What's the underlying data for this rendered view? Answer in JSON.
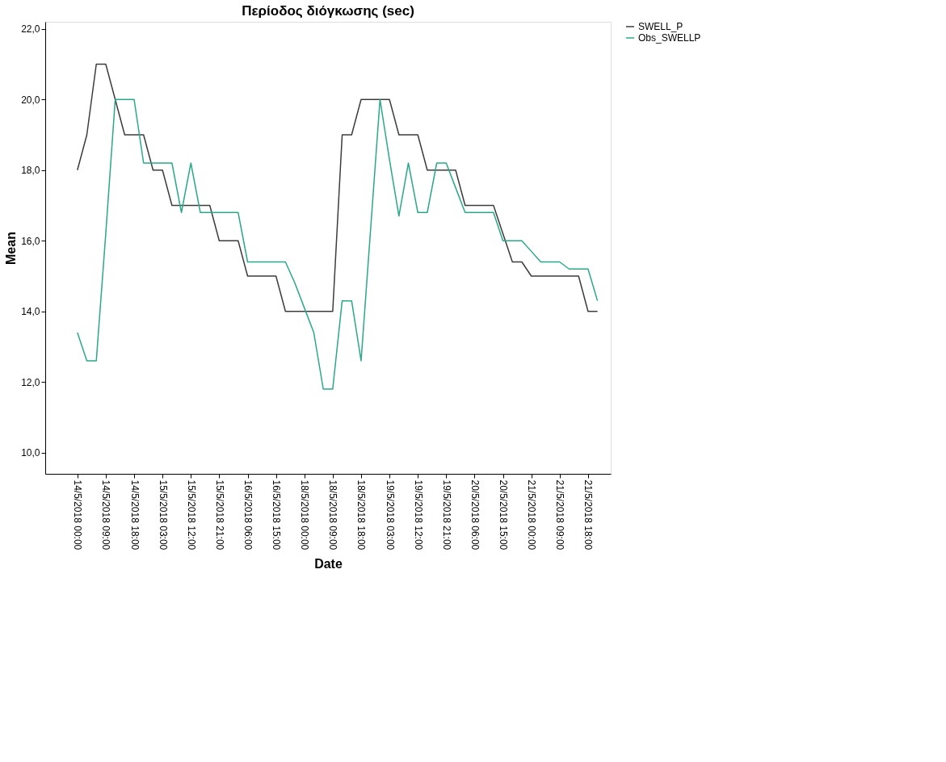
{
  "chart_data": {
    "type": "line",
    "title": "Περίοδος διόγκωσης (sec)",
    "xlabel": "Date",
    "ylabel": "Mean",
    "categories": [
      "14/5/2018 00:00",
      null,
      null,
      "14/5/2018 09:00",
      null,
      null,
      "14/5/2018 18:00",
      null,
      null,
      "15/5/2018 03:00",
      null,
      null,
      "15/5/2018 12:00",
      null,
      null,
      "15/5/2018 21:00",
      null,
      null,
      "16/5/2018 06:00",
      null,
      null,
      "16/5/2018 15:00",
      null,
      null,
      "18/5/2018 00:00",
      null,
      null,
      "18/5/2018 09:00",
      null,
      null,
      "18/5/2018 18:00",
      null,
      null,
      "19/5/2018 03:00",
      null,
      null,
      "19/5/2018 12:00",
      null,
      null,
      "19/5/2018 21:00",
      null,
      null,
      "20/5/2018 06:00",
      null,
      null,
      "20/5/2018 15:00",
      null,
      null,
      "21/5/2018 00:00",
      null,
      null,
      "21/5/2018 09:00",
      null,
      null,
      "21/5/2018 18:00",
      null
    ],
    "series": [
      {
        "name": "SWELL_P",
        "color": "#3c3c3c",
        "values": [
          18,
          19,
          21,
          21,
          20,
          19,
          19,
          19,
          18,
          18,
          17,
          17,
          17,
          17,
          17,
          16,
          16,
          16,
          15,
          15,
          15,
          15,
          14,
          14,
          14,
          14,
          14,
          14,
          19,
          19,
          20,
          20,
          20,
          20,
          19,
          19,
          19,
          18,
          18,
          18,
          18,
          17,
          17,
          17,
          17,
          16.2,
          15.4,
          15.4,
          15,
          15,
          15,
          15,
          15,
          15,
          14,
          14
        ]
      },
      {
        "name": "Obs_SWELLP",
        "color": "#2aa889",
        "values": [
          13.4,
          12.6,
          12.6,
          16.2,
          20,
          20,
          20,
          18.2,
          18.2,
          18.2,
          18.2,
          16.8,
          18.2,
          16.8,
          16.8,
          16.8,
          16.8,
          16.8,
          15.4,
          15.4,
          15.4,
          15.4,
          15.4,
          14.8,
          14.1,
          13.4,
          11.8,
          11.8,
          14.3,
          14.3,
          12.6,
          16.3,
          20,
          18.3,
          16.7,
          18.2,
          16.8,
          16.8,
          18.2,
          18.2,
          17.5,
          16.8,
          16.8,
          16.8,
          16.8,
          16,
          16,
          16,
          15.7,
          15.4,
          15.4,
          15.4,
          15.2,
          15.2,
          15.2,
          14.3
        ]
      }
    ],
    "ylim": [
      9.4,
      22.2
    ],
    "yticks": [
      {
        "value": 10,
        "label": "10,0"
      },
      {
        "value": 12,
        "label": "12,0"
      },
      {
        "value": 14,
        "label": "14,0"
      },
      {
        "value": 16,
        "label": "16,0"
      },
      {
        "value": 18,
        "label": "18,0"
      },
      {
        "value": 20,
        "label": "20,0"
      },
      {
        "value": 22,
        "label": "22,0"
      }
    ],
    "legend": "top right",
    "grid": false,
    "line_style": "solid",
    "marker": "none"
  }
}
